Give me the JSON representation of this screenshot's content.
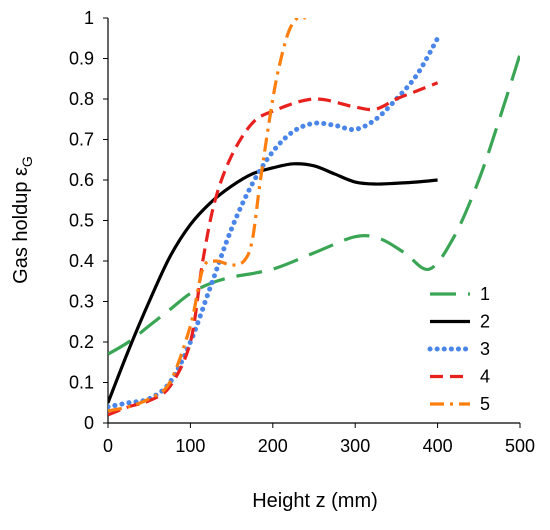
{
  "chart_data": {
    "type": "line",
    "title": "",
    "xlabel": "Height z (mm)",
    "ylabel": "Gas holdup ε",
    "ylabel_subscript": "G",
    "xlim": [
      0,
      500
    ],
    "ylim": [
      0,
      1
    ],
    "xticks": [
      0,
      100,
      200,
      300,
      400,
      500
    ],
    "yticks": [
      0,
      0.1,
      0.2,
      0.3,
      0.4,
      0.5,
      0.6,
      0.7,
      0.8,
      0.9,
      1
    ],
    "xtick_labels": [
      "0",
      "100",
      "200",
      "300",
      "400",
      "500"
    ],
    "ytick_labels": [
      "0",
      "0.1",
      "0.2",
      "0.3",
      "0.4",
      "0.5",
      "0.6",
      "0.7",
      "0.8",
      "0.9",
      "1"
    ],
    "grid": false,
    "legend_position": "bottom-right",
    "series": [
      {
        "name": "1",
        "color": "#3aa655",
        "dash": "long-dash",
        "x": [
          0,
          25,
          50,
          75,
          100,
          125,
          150,
          200,
          250,
          300,
          330,
          360,
          390,
          420,
          450,
          475,
          500
        ],
        "y": [
          0.17,
          0.2,
          0.24,
          0.28,
          0.32,
          0.345,
          0.36,
          0.38,
          0.42,
          0.46,
          0.455,
          0.42,
          0.38,
          0.46,
          0.6,
          0.75,
          0.91
        ]
      },
      {
        "name": "2",
        "color": "#000000",
        "dash": "solid",
        "x": [
          0,
          25,
          50,
          75,
          100,
          125,
          150,
          175,
          200,
          225,
          250,
          275,
          300,
          325,
          350,
          375,
          400
        ],
        "y": [
          0.05,
          0.18,
          0.3,
          0.41,
          0.49,
          0.545,
          0.585,
          0.615,
          0.63,
          0.64,
          0.635,
          0.615,
          0.595,
          0.59,
          0.592,
          0.595,
          0.6
        ]
      },
      {
        "name": "3",
        "color": "#4a86e8",
        "dash": "dotted",
        "x": [
          0,
          25,
          50,
          75,
          100,
          125,
          150,
          175,
          200,
          225,
          250,
          275,
          300,
          325,
          350,
          375,
          400
        ],
        "y": [
          0.04,
          0.05,
          0.06,
          0.1,
          0.2,
          0.34,
          0.48,
          0.59,
          0.67,
          0.72,
          0.74,
          0.735,
          0.725,
          0.75,
          0.8,
          0.86,
          0.95
        ]
      },
      {
        "name": "4",
        "color": "#e8211e",
        "dash": "dashed",
        "x": [
          0,
          25,
          50,
          75,
          100,
          115,
          130,
          150,
          175,
          200,
          250,
          300,
          325,
          350,
          375,
          400
        ],
        "y": [
          0.02,
          0.04,
          0.055,
          0.09,
          0.2,
          0.4,
          0.55,
          0.66,
          0.74,
          0.77,
          0.8,
          0.78,
          0.775,
          0.8,
          0.82,
          0.84
        ]
      },
      {
        "name": "5",
        "color": "#ff7f0e",
        "dash": "dash-dot",
        "x": [
          0,
          25,
          50,
          75,
          100,
          115,
          130,
          150,
          165,
          175,
          185,
          200,
          210,
          220,
          230,
          240
        ],
        "y": [
          0.03,
          0.04,
          0.06,
          0.1,
          0.24,
          0.38,
          0.4,
          0.39,
          0.4,
          0.45,
          0.6,
          0.8,
          0.9,
          0.97,
          1.0,
          1.0
        ]
      }
    ]
  }
}
